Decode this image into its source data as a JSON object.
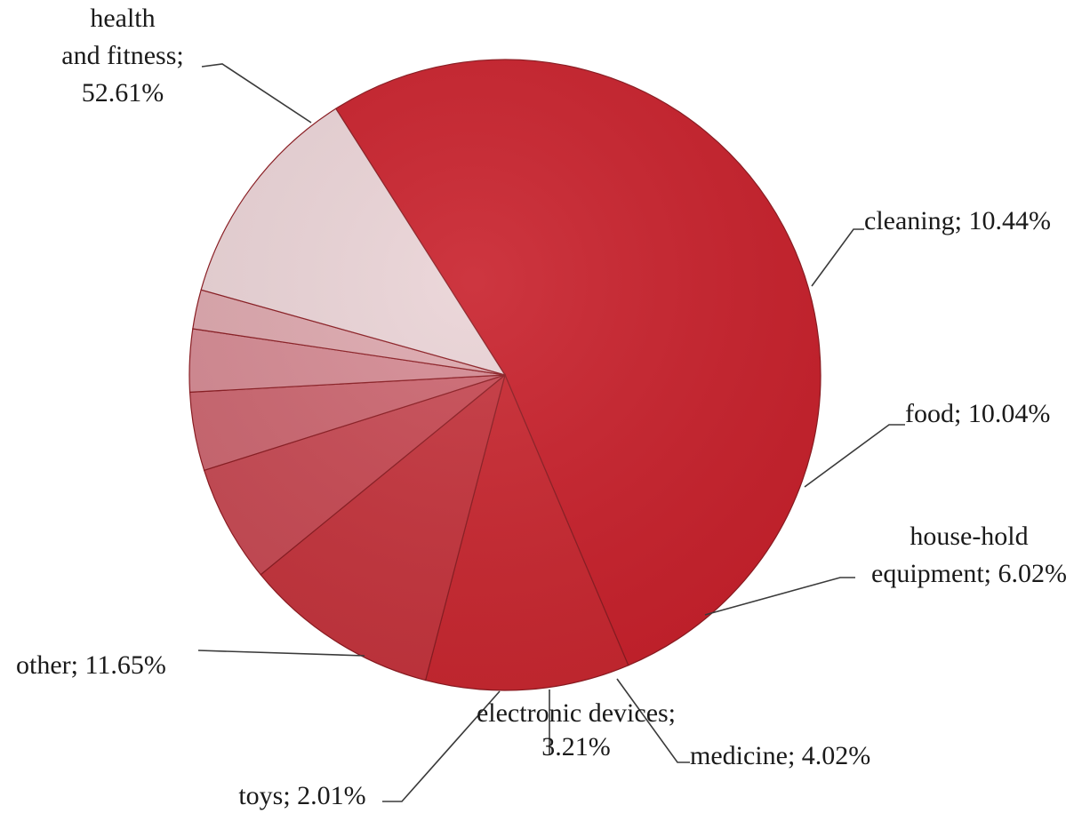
{
  "chart_data": {
    "type": "pie",
    "title": "",
    "slices": [
      {
        "label_lines": [
          "health",
          "and fitness;",
          "52.61%"
        ],
        "category": "health and fitness",
        "value": 52.61,
        "color": "#c8202b"
      },
      {
        "label_lines": [
          "cleaning;  10.44%"
        ],
        "category": "cleaning",
        "value": 10.44,
        "color": "#c8262f"
      },
      {
        "label_lines": [
          "food; 10.04%"
        ],
        "category": "food",
        "value": 10.04,
        "color": "#c4333c"
      },
      {
        "label_lines": [
          "house-hold",
          "equipment;  6.02%"
        ],
        "category": "house-hold equipment",
        "value": 6.02,
        "color": "#c74953"
      },
      {
        "label_lines": [
          "medicine;  4.02%"
        ],
        "category": "medicine",
        "value": 4.02,
        "color": "#cc6670"
      },
      {
        "label_lines": [
          "electronic devices;",
          "3.21%"
        ],
        "category": "electronic devices",
        "value": 3.21,
        "color": "#d58a93"
      },
      {
        "label_lines": [
          "toys;  2.01%"
        ],
        "category": "toys",
        "value": 2.01,
        "color": "#dda7ad"
      },
      {
        "label_lines": [
          "other; 11.65%"
        ],
        "category": "other",
        "value": 11.65,
        "color": "#ead3d6"
      }
    ]
  }
}
